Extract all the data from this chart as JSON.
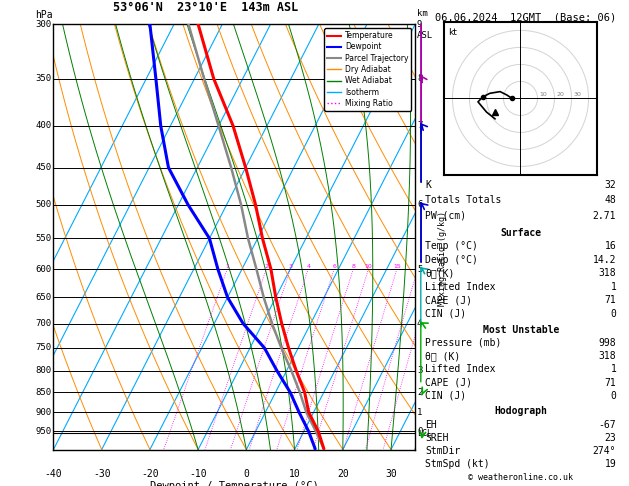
{
  "title_left": "53°06'N  23°10'E  143m ASL",
  "title_right": "06.06.2024  12GMT  (Base: 06)",
  "xlabel": "Dewpoint / Temperature (°C)",
  "colors": {
    "temperature": "#FF0000",
    "dewpoint": "#0000FF",
    "parcel": "#888888",
    "dry_adiabat": "#FF8C00",
    "wet_adiabat": "#008000",
    "isotherm": "#00AAFF",
    "mixing_ratio": "#FF00FF",
    "background": "#FFFFFF",
    "grid": "#000000"
  },
  "temp_profile": {
    "pressure": [
      998,
      950,
      900,
      850,
      800,
      750,
      700,
      650,
      600,
      550,
      500,
      450,
      400,
      350,
      300
    ],
    "temp": [
      16,
      13,
      9,
      6,
      2,
      -2,
      -6,
      -10,
      -14,
      -19,
      -24,
      -30,
      -37,
      -46,
      -55
    ]
  },
  "dewp_profile": {
    "pressure": [
      998,
      950,
      900,
      850,
      800,
      750,
      700,
      650,
      600,
      550,
      500,
      450,
      400,
      350,
      300
    ],
    "temp": [
      14.2,
      11,
      7,
      3,
      -2,
      -7,
      -14,
      -20,
      -25,
      -30,
      -38,
      -46,
      -52,
      -58,
      -65
    ]
  },
  "parcel_profile": {
    "pressure": [
      998,
      950,
      900,
      850,
      800,
      750,
      700,
      650,
      600,
      550,
      500,
      450,
      400,
      350,
      300
    ],
    "temp": [
      16,
      12.5,
      8.5,
      5,
      1,
      -3.5,
      -8,
      -12.5,
      -17,
      -22,
      -27,
      -33,
      -40,
      -48,
      -57
    ]
  },
  "lcl_pressure": 955,
  "stats": {
    "K": 32,
    "Totals_Totals": 48,
    "PW_cm": 2.71,
    "Surface_Temp": 16,
    "Surface_Dewp": 14.2,
    "Surface_ThetaE": 318,
    "Surface_LI": 1,
    "Surface_CAPE": 71,
    "Surface_CIN": 0,
    "MU_Pressure": 998,
    "MU_ThetaE": 318,
    "MU_LI": 1,
    "MU_CAPE": 71,
    "MU_CIN": 0,
    "EH": -67,
    "SREH": 23,
    "StmDir": 274,
    "StmSpd": 19
  },
  "wind_barbs_right": {
    "pressures": [
      300,
      350,
      400,
      500,
      600,
      700,
      850,
      950
    ],
    "u": [
      -28,
      -26,
      -24,
      -20,
      -15,
      -10,
      -5,
      -3
    ],
    "v": [
      8,
      7,
      5,
      3,
      2,
      1,
      -2,
      -3
    ],
    "colors": [
      "#AA00AA",
      "#AA00AA",
      "#0000CC",
      "#0000CC",
      "#00AAAA",
      "#00AA00",
      "#00AA00",
      "#00AA00"
    ]
  },
  "hodo_u": [
    -5,
    -8,
    -12,
    -18,
    -22,
    -25,
    -20,
    -15
  ],
  "hodo_v": [
    0,
    2,
    4,
    3,
    1,
    -2,
    -8,
    -12
  ],
  "hodo_dot1_u": -5,
  "hodo_dot1_v": 0,
  "hodo_dot2_u": -22,
  "hodo_dot2_v": 1,
  "hodo_storm_u": -15,
  "hodo_storm_v": -8
}
